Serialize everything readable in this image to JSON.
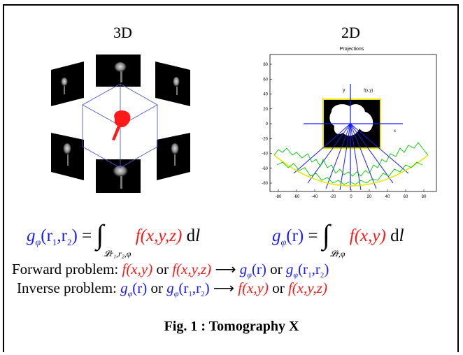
{
  "titles": {
    "left": "3D",
    "right": "2D"
  },
  "plot": {
    "title": "Projections",
    "x_ticks": [
      "-80",
      "-60",
      "-40",
      "-20",
      "0",
      "20",
      "40",
      "60",
      "80"
    ],
    "y_ticks": [
      "80",
      "60",
      "40",
      "20",
      "0",
      "-20",
      "-40",
      "-60",
      "-80"
    ],
    "label_y": "y",
    "label_fxy": "f(x,y)",
    "label_x": "x"
  },
  "equations": {
    "eq3d": {
      "lhs": "g",
      "sub_phi": "φ",
      "args": "(r",
      "r1": "1",
      "comma": ",r",
      "r2": "2",
      "close": ")",
      "eq": "=",
      "integral": "∫",
      "domain": "𝓛",
      "domain_sub": "r₁,r₂,φ",
      "func": "f(x,y,z)",
      "dl": "d",
      "l": "l"
    },
    "eq2d": {
      "lhs": "g",
      "sub_phi": "φ",
      "args": "(r)",
      "eq": "=",
      "integral": "∫",
      "domain": "𝓛",
      "domain_sub": "r,φ",
      "func": "f(x,y)",
      "dl": "d",
      "l": "l"
    }
  },
  "forward": {
    "label": "Forward problem:",
    "a": "f(x,y)",
    "or1": "or",
    "b": "f(x,y,z)",
    "arrow": "⟶",
    "c_g": "g",
    "c_phi": "φ",
    "c_args": "(r)",
    "or2": "or",
    "d_g": "g",
    "d_phi": "φ",
    "d_args": "(r",
    "d_1": "1",
    "d_mid": ",r",
    "d_2": "2",
    "d_close": ")"
  },
  "inverse": {
    "label": "Inverse problem:",
    "a_g": "g",
    "a_phi": "φ",
    "a_args": "(r)",
    "or1": "or",
    "b_g": "g",
    "b_phi": "φ",
    "b_args": "(r",
    "b_1": "1",
    "b_mid": ",r",
    "b_2": "2",
    "b_close": ")",
    "arrow": "⟶",
    "c": "f(x,y)",
    "or2": "or",
    "d": "f(x,y,z)"
  },
  "caption": "Fig. 1 : Tomography X",
  "colors": {
    "blue": "#1a1aff",
    "red": "#ff1a1a",
    "yellow": "#e6e600",
    "green": "#00cc00"
  }
}
